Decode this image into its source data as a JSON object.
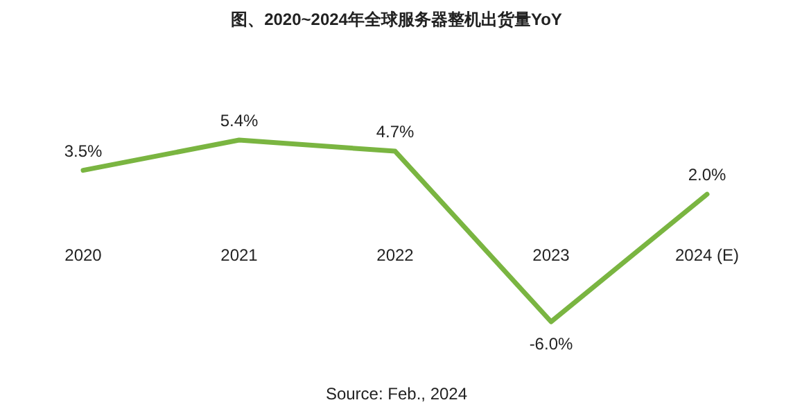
{
  "chart_data": {
    "type": "line",
    "title": "图、2020~2024年全球服务器整机出货量YoY",
    "categories": [
      "2020",
      "2021",
      "2022",
      "2023",
      "2024 (E)"
    ],
    "series": [
      {
        "color": "#7ab541",
        "values": [
          3.5,
          5.4,
          4.7,
          -6.0,
          2.0
        ],
        "value_labels": [
          "3.5%",
          "5.4%",
          "4.7%",
          "-6.0%",
          "2.0%"
        ]
      }
    ],
    "annotations": [
      "Source: Feb., 2024"
    ],
    "grid": false,
    "marker": "none",
    "line_style": "solid"
  }
}
